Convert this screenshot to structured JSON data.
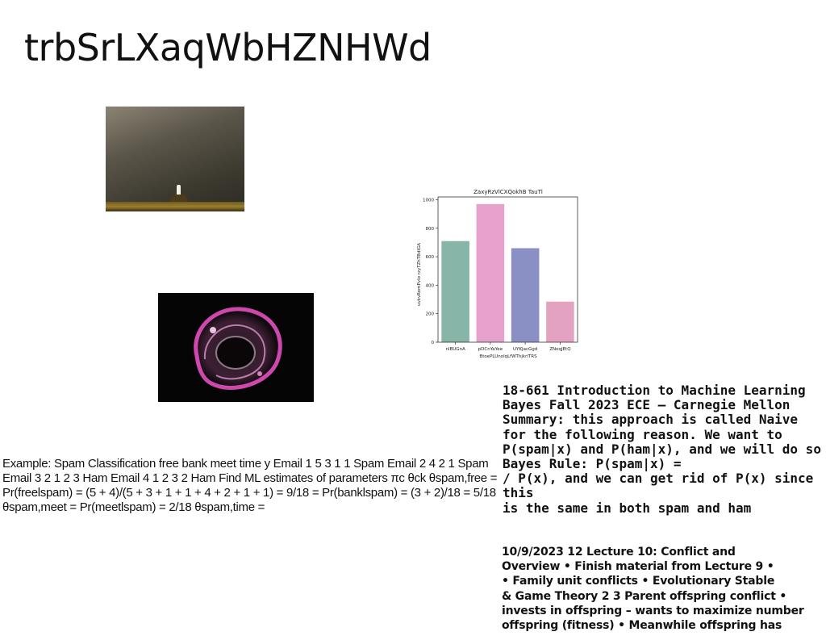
{
  "page": {
    "title": "trbSrLXaqWbHZNHWd"
  },
  "images": {
    "photo_one": "dark brown backdrop with small white candle on gold ledge",
    "photo_two": "glossy translucent pink-rimmed blob on black"
  },
  "chart_data": {
    "type": "bar",
    "title": "ZaxyRzVlCXQokhB TauTl",
    "xlabel": "BtoePLUnolqLfWThjkrlTRS",
    "ylabel": "uvkvRomPvlo rzyTZhTBdIGA",
    "categories": [
      "nlBUGnA",
      "pDCnYaYee",
      "UYKJacGgd",
      "ZNoqJEtQ"
    ],
    "values": [
      710,
      970,
      660,
      285
    ],
    "colors": [
      "#87b5a8",
      "#e6a1cd",
      "#8a8fc4",
      "#e3a3c0"
    ],
    "ylim": [
      0,
      1020
    ],
    "yticks": [
      0,
      200,
      400,
      600,
      800,
      1000
    ],
    "grid": false
  },
  "text_blocks": {
    "left_body": "Example: Spam Classification free bank meet time y Email 1 5 3 1 1 Spam Email 2 4 2 1 Spam Email 3 2 1 2 3 Ham Email 4 1 2 3 2 Ham Find ML estimates of parameters πc θck θspam,free = Pr(freelspam) = (5 + 4)/(5 + 3 + 1 + 1 + 4 + 2 + 1 + 1) = 9/18 = Pr(banklspam) = (3 + 2)/18 = 5/18 θspam,meet = Pr(meetlspam) = 2/18 θspam,time =",
    "right_body": "18-661 Introduction to Machine Learning\nBayes Fall 2023 ECE – Carnegie Mellon\nSummary: this approach is called Naive\nfor the following reason. We want to\nP(spam|x) and P(ham|x), and we will do so\nBayes Rule: P(spam|x) =\n/ P(x), and we can get rid of P(x) since this\nis the same in both spam and ham",
    "lecture_body": "10/9/2023 12 Lecture 10: Conflict and\nOverview • Finish material from Lecture 9 •\n• Family unit conflicts • Evolutionary Stable\n& Game Theory 2 3 Parent offspring conflict •\ninvests in offspring – wants to maximize number\noffspring (fitness) • Meanwhile offspring has"
  }
}
